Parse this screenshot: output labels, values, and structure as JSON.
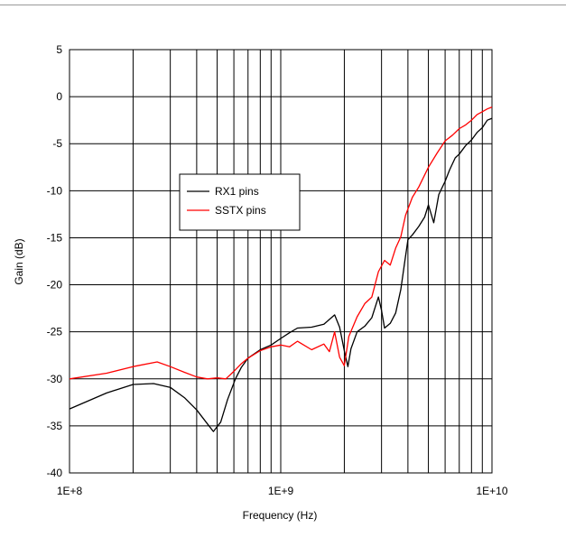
{
  "chart_data": {
    "type": "line",
    "title": "",
    "xlabel": "Frequency (Hz)",
    "ylabel": "Gain (dB)",
    "x_scale": "log",
    "xlim": [
      100000000,
      10000000000
    ],
    "ylim": [
      -40,
      5
    ],
    "grid": true,
    "legend_position": "center-left",
    "x_ticks": [
      {
        "value": 100000000,
        "label": "1E+8"
      },
      {
        "value": 1000000000,
        "label": "1E+9"
      },
      {
        "value": 10000000000,
        "label": "1E+10"
      }
    ],
    "y_ticks": [
      {
        "value": 5,
        "label": "5"
      },
      {
        "value": 0,
        "label": "0"
      },
      {
        "value": -5,
        "label": "-5"
      },
      {
        "value": -10,
        "label": "-10"
      },
      {
        "value": -15,
        "label": "-15"
      },
      {
        "value": -20,
        "label": "-20"
      },
      {
        "value": -25,
        "label": "-25"
      },
      {
        "value": -30,
        "label": "-30"
      },
      {
        "value": -35,
        "label": "-35"
      },
      {
        "value": -40,
        "label": "-40"
      }
    ],
    "series": [
      {
        "name": "RX1 pins",
        "color": "#000000",
        "points": [
          [
            100000000,
            -33.2
          ],
          [
            150000000,
            -31.5
          ],
          [
            200000000,
            -30.6
          ],
          [
            250000000,
            -30.5
          ],
          [
            300000000,
            -30.9
          ],
          [
            350000000,
            -32.0
          ],
          [
            400000000,
            -33.3
          ],
          [
            450000000,
            -34.8
          ],
          [
            480000000,
            -35.6
          ],
          [
            520000000,
            -34.6
          ],
          [
            560000000,
            -32.2
          ],
          [
            610000000,
            -30.0
          ],
          [
            650000000,
            -28.8
          ],
          [
            700000000,
            -27.8
          ],
          [
            800000000,
            -26.9
          ],
          [
            900000000,
            -26.4
          ],
          [
            1000000000,
            -25.7
          ],
          [
            1100000000,
            -25.1
          ],
          [
            1200000000,
            -24.6
          ],
          [
            1400000000,
            -24.5
          ],
          [
            1600000000,
            -24.2
          ],
          [
            1800000000,
            -23.2
          ],
          [
            1900000000,
            -24.5
          ],
          [
            2000000000,
            -27.0
          ],
          [
            2080000000,
            -28.7
          ],
          [
            2150000000,
            -26.8
          ],
          [
            2300000000,
            -25.0
          ],
          [
            2500000000,
            -24.4
          ],
          [
            2700000000,
            -23.5
          ],
          [
            2900000000,
            -21.3
          ],
          [
            3000000000,
            -22.7
          ],
          [
            3100000000,
            -24.6
          ],
          [
            3300000000,
            -24.1
          ],
          [
            3500000000,
            -23.0
          ],
          [
            3700000000,
            -20.5
          ],
          [
            3850000000,
            -17.8
          ],
          [
            4000000000,
            -15.2
          ],
          [
            4200000000,
            -14.7
          ],
          [
            4500000000,
            -13.8
          ],
          [
            4800000000,
            -12.8
          ],
          [
            5000000000,
            -11.5
          ],
          [
            5300000000,
            -13.4
          ],
          [
            5600000000,
            -10.4
          ],
          [
            6000000000,
            -9.0
          ],
          [
            6300000000,
            -7.8
          ],
          [
            6700000000,
            -6.5
          ],
          [
            7000000000,
            -6.1
          ],
          [
            7500000000,
            -5.2
          ],
          [
            8000000000,
            -4.6
          ],
          [
            8500000000,
            -3.8
          ],
          [
            9000000000,
            -3.3
          ],
          [
            9500000000,
            -2.5
          ],
          [
            10000000000,
            -2.3
          ]
        ]
      },
      {
        "name": "SSTX pins",
        "color": "#ff0000",
        "points": [
          [
            100000000,
            -30.0
          ],
          [
            150000000,
            -29.4
          ],
          [
            200000000,
            -28.7
          ],
          [
            260000000,
            -28.2
          ],
          [
            300000000,
            -28.7
          ],
          [
            350000000,
            -29.3
          ],
          [
            400000000,
            -29.8
          ],
          [
            450000000,
            -30.0
          ],
          [
            500000000,
            -29.9
          ],
          [
            550000000,
            -30.0
          ],
          [
            600000000,
            -29.2
          ],
          [
            650000000,
            -28.4
          ],
          [
            700000000,
            -27.8
          ],
          [
            800000000,
            -27.0
          ],
          [
            900000000,
            -26.6
          ],
          [
            1000000000,
            -26.4
          ],
          [
            1100000000,
            -26.6
          ],
          [
            1200000000,
            -26.0
          ],
          [
            1400000000,
            -26.9
          ],
          [
            1600000000,
            -26.3
          ],
          [
            1700000000,
            -27.1
          ],
          [
            1800000000,
            -25.0
          ],
          [
            1900000000,
            -27.7
          ],
          [
            2000000000,
            -28.6
          ],
          [
            2100000000,
            -25.5
          ],
          [
            2300000000,
            -23.4
          ],
          [
            2500000000,
            -22.0
          ],
          [
            2700000000,
            -21.3
          ],
          [
            2900000000,
            -18.6
          ],
          [
            3100000000,
            -17.4
          ],
          [
            3300000000,
            -17.9
          ],
          [
            3500000000,
            -16.1
          ],
          [
            3700000000,
            -14.9
          ],
          [
            3900000000,
            -12.6
          ],
          [
            4200000000,
            -10.7
          ],
          [
            4500000000,
            -9.6
          ],
          [
            5000000000,
            -7.5
          ],
          [
            5500000000,
            -6.0
          ],
          [
            6000000000,
            -4.7
          ],
          [
            6500000000,
            -4.1
          ],
          [
            7000000000,
            -3.4
          ],
          [
            7500000000,
            -3.0
          ],
          [
            8000000000,
            -2.5
          ],
          [
            8500000000,
            -1.9
          ],
          [
            9000000000,
            -1.6
          ],
          [
            9500000000,
            -1.3
          ],
          [
            10000000000,
            -1.1
          ]
        ]
      }
    ]
  }
}
